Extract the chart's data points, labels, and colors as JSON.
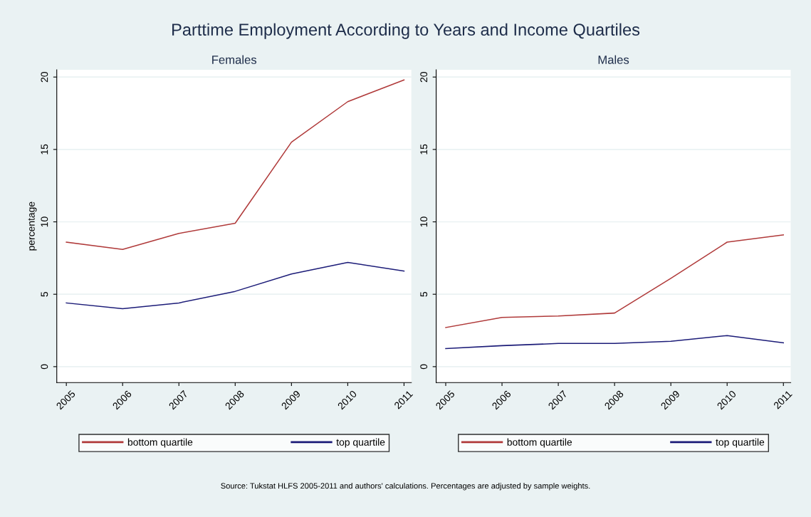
{
  "chart_data": [
    {
      "type": "line",
      "title": "Parttime Employment According to Years and Income Quartiles",
      "subtitle": "Females",
      "ylabel": "percentage",
      "x": [
        2005,
        2006,
        2007,
        2008,
        2009,
        2010,
        2011
      ],
      "series": [
        {
          "name": "bottom quartile",
          "color": "#b03a3a",
          "values": [
            8.6,
            8.1,
            9.2,
            9.9,
            15.5,
            18.3,
            19.8
          ]
        },
        {
          "name": "top quartile",
          "color": "#1c1c78",
          "values": [
            4.4,
            4.0,
            4.4,
            5.2,
            6.4,
            7.2,
            6.6
          ]
        }
      ],
      "xlim": [
        2004.83,
        2011.13
      ],
      "xticks": [
        2005,
        2006,
        2007,
        2008,
        2009,
        2010,
        2011
      ],
      "ylim": [
        -1.1,
        20.5
      ],
      "yticks": [
        0,
        5,
        10,
        15,
        20
      ],
      "grid": "y",
      "legend": "bottom",
      "marker": "none",
      "line_style": "solid",
      "annotations": [
        "Source: Tukstat HLFS 2005-2011 and authors' calculations. Percentages are adjusted by sample weights."
      ]
    },
    {
      "type": "line",
      "subtitle": "Males",
      "x": [
        2005,
        2006,
        2007,
        2008,
        2009,
        2010,
        2011
      ],
      "series": [
        {
          "name": "bottom quartile",
          "color": "#b03a3a",
          "values": [
            2.7,
            3.4,
            3.5,
            3.7,
            6.1,
            8.6,
            9.1
          ]
        },
        {
          "name": "top quartile",
          "color": "#1c1c78",
          "values": [
            1.25,
            1.45,
            1.6,
            1.6,
            1.75,
            2.15,
            1.65
          ]
        }
      ],
      "xlim": [
        2004.83,
        2011.13
      ],
      "xticks": [
        2005,
        2006,
        2007,
        2008,
        2009,
        2010,
        2011
      ],
      "ylim": [
        -1.1,
        20.5
      ],
      "yticks": [
        0,
        5,
        10,
        15,
        20
      ],
      "grid": "y",
      "legend": "bottom",
      "marker": "none",
      "line_style": "solid"
    }
  ]
}
